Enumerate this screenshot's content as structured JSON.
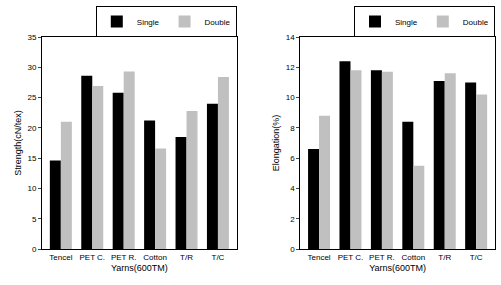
{
  "chart_data": [
    {
      "type": "bar",
      "x_label": "Yarns(600TM)",
      "y_label": "Strength(cN/tex)",
      "categories": [
        "Tencel",
        "PET C.",
        "PET R.",
        "Cotton",
        "T/R",
        "T/C"
      ],
      "series": [
        {
          "name": "Single",
          "color": "#000000",
          "values": [
            14.6,
            28.6,
            25.8,
            21.2,
            18.5,
            24.0
          ]
        },
        {
          "name": "Double",
          "color": "#c0c0c0",
          "values": [
            21.0,
            26.9,
            29.3,
            16.6,
            22.8,
            28.4
          ]
        }
      ],
      "ylim": [
        0,
        35
      ],
      "yticks": [
        0,
        5,
        10,
        15,
        20,
        25,
        30,
        35
      ],
      "grid": false,
      "legend": "upper right"
    },
    {
      "type": "bar",
      "x_label": "Yarns(600TM)",
      "y_label": "Elongation(%)",
      "categories": [
        "Tencel",
        "PET C.",
        "PET R.",
        "Cotton",
        "T/R",
        "T/C"
      ],
      "series": [
        {
          "name": "Single",
          "color": "#000000",
          "values": [
            6.6,
            12.4,
            11.8,
            8.4,
            11.1,
            11.0
          ]
        },
        {
          "name": "Double",
          "color": "#c0c0c0",
          "values": [
            8.8,
            11.8,
            11.7,
            5.5,
            11.6,
            10.2
          ]
        }
      ],
      "ylim": [
        0,
        14
      ],
      "yticks": [
        0,
        2,
        4,
        6,
        8,
        10,
        12,
        14
      ],
      "grid": false,
      "legend": "upper right"
    }
  ]
}
